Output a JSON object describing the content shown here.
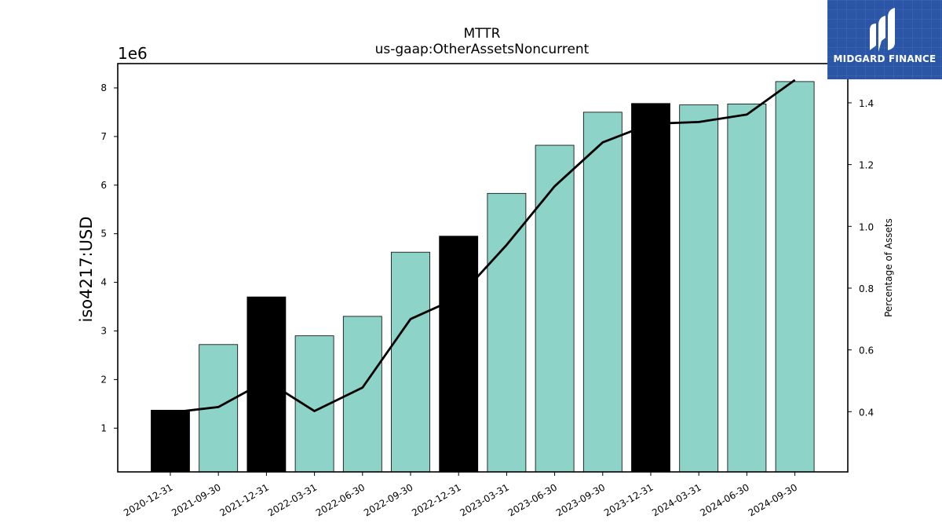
{
  "chart_data": {
    "type": "bar",
    "title": "MTTR",
    "subtitle": "us-gaap:OtherAssetsNoncurrent",
    "ylabel": "iso4217:USD",
    "y2label": "Percentage of Assets",
    "y_offset_label": "1e6",
    "categories": [
      "2020-12-31",
      "2021-09-30",
      "2021-12-31",
      "2022-03-31",
      "2022-06-30",
      "2022-09-30",
      "2022-12-31",
      "2023-03-31",
      "2023-06-30",
      "2023-09-30",
      "2023-12-31",
      "2024-03-31",
      "2024-06-30",
      "2024-09-30"
    ],
    "series": [
      {
        "type": "bar",
        "values": [
          1370000,
          2720000,
          3700000,
          2900000,
          3300000,
          4620000,
          4950000,
          5830000,
          6820000,
          7500000,
          7680000,
          7650000,
          7670000,
          8130000
        ],
        "colors": [
          "#000000",
          "#8dd3c7",
          "#000000",
          "#8dd3c7",
          "#8dd3c7",
          "#8dd3c7",
          "#000000",
          "#8dd3c7",
          "#8dd3c7",
          "#8dd3c7",
          "#000000",
          "#8dd3c7",
          "#8dd3c7",
          "#8dd3c7"
        ],
        "axis": "left"
      },
      {
        "type": "line",
        "values": [
          0.397,
          0.415,
          0.5,
          0.402,
          0.478,
          0.7,
          0.77,
          0.94,
          1.13,
          1.272,
          1.332,
          1.338,
          1.362,
          1.474
        ],
        "color": "#000000",
        "axis": "right"
      }
    ],
    "ylim": [
      0.1,
      8.5
    ],
    "y2lim": [
      0.205,
      1.527
    ],
    "yticks": [
      1,
      2,
      3,
      4,
      5,
      6,
      7,
      8
    ],
    "y2ticks": [
      0.4,
      0.6,
      0.8,
      1.0,
      1.2,
      1.4
    ],
    "grid": false,
    "legend": "none"
  },
  "logo": {
    "text": "MIDGARD FINANCE",
    "background": "#2b56a8"
  }
}
